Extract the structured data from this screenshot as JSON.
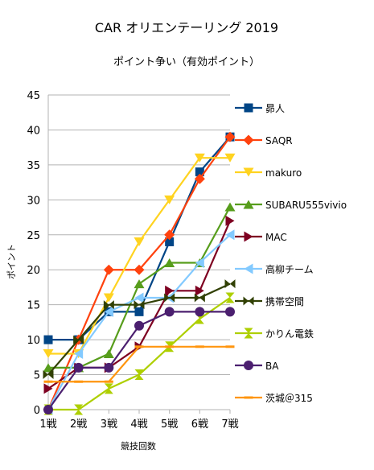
{
  "chart_data": {
    "type": "line",
    "title": "CAR オリエンテーリング 2019",
    "subtitle": "ポイント争い（有効ポイント）",
    "xlabel": "競技回数",
    "ylabel": "ポイント",
    "categories": [
      "1戦",
      "2戦",
      "3戦",
      "4戦",
      "5戦",
      "6戦",
      "7戦"
    ],
    "ylim": [
      0,
      45
    ],
    "yticks": [
      0,
      5,
      10,
      15,
      20,
      25,
      30,
      35,
      40,
      45
    ],
    "grid": true,
    "legend_position": "right",
    "series": [
      {
        "name": "昴人",
        "color": "#004586",
        "marker": "square",
        "values": [
          10,
          10,
          14,
          14,
          24,
          34,
          39
        ]
      },
      {
        "name": "SAQR",
        "color": "#ff420e",
        "marker": "diamond",
        "values": [
          0,
          10,
          20,
          20,
          25,
          33,
          39
        ]
      },
      {
        "name": "makuro",
        "color": "#ffd320",
        "marker": "triangle-down",
        "values": [
          8,
          8,
          16,
          24,
          30,
          36,
          36
        ]
      },
      {
        "name": "SUBARU555vivio",
        "color": "#579d1c",
        "marker": "triangle-up",
        "values": [
          6,
          6,
          8,
          18,
          21,
          21,
          29
        ]
      },
      {
        "name": "MAC",
        "color": "#7e0021",
        "marker": "triangle-right",
        "values": [
          3,
          6,
          6,
          9,
          17,
          17,
          27
        ]
      },
      {
        "name": "高柳チーム",
        "color": "#83caff",
        "marker": "triangle-left",
        "values": [
          0,
          8,
          14,
          16,
          16,
          21,
          25
        ]
      },
      {
        "name": "携帯空間",
        "color": "#314004",
        "marker": "bowtie",
        "values": [
          5,
          10,
          15,
          15,
          16,
          16,
          18
        ]
      },
      {
        "name": "かりん電鉄",
        "color": "#aecf00",
        "marker": "hourglass",
        "values": [
          0,
          0,
          3,
          5,
          9,
          13,
          16
        ]
      },
      {
        "name": "BA",
        "color": "#4b1f6f",
        "marker": "circle",
        "values": [
          0,
          6,
          6,
          12,
          14,
          14,
          14
        ]
      },
      {
        "name": "茨城＠315",
        "color": "#ff950e",
        "marker": "dash",
        "values": [
          4,
          4,
          4,
          9,
          9,
          9,
          9
        ]
      }
    ]
  }
}
